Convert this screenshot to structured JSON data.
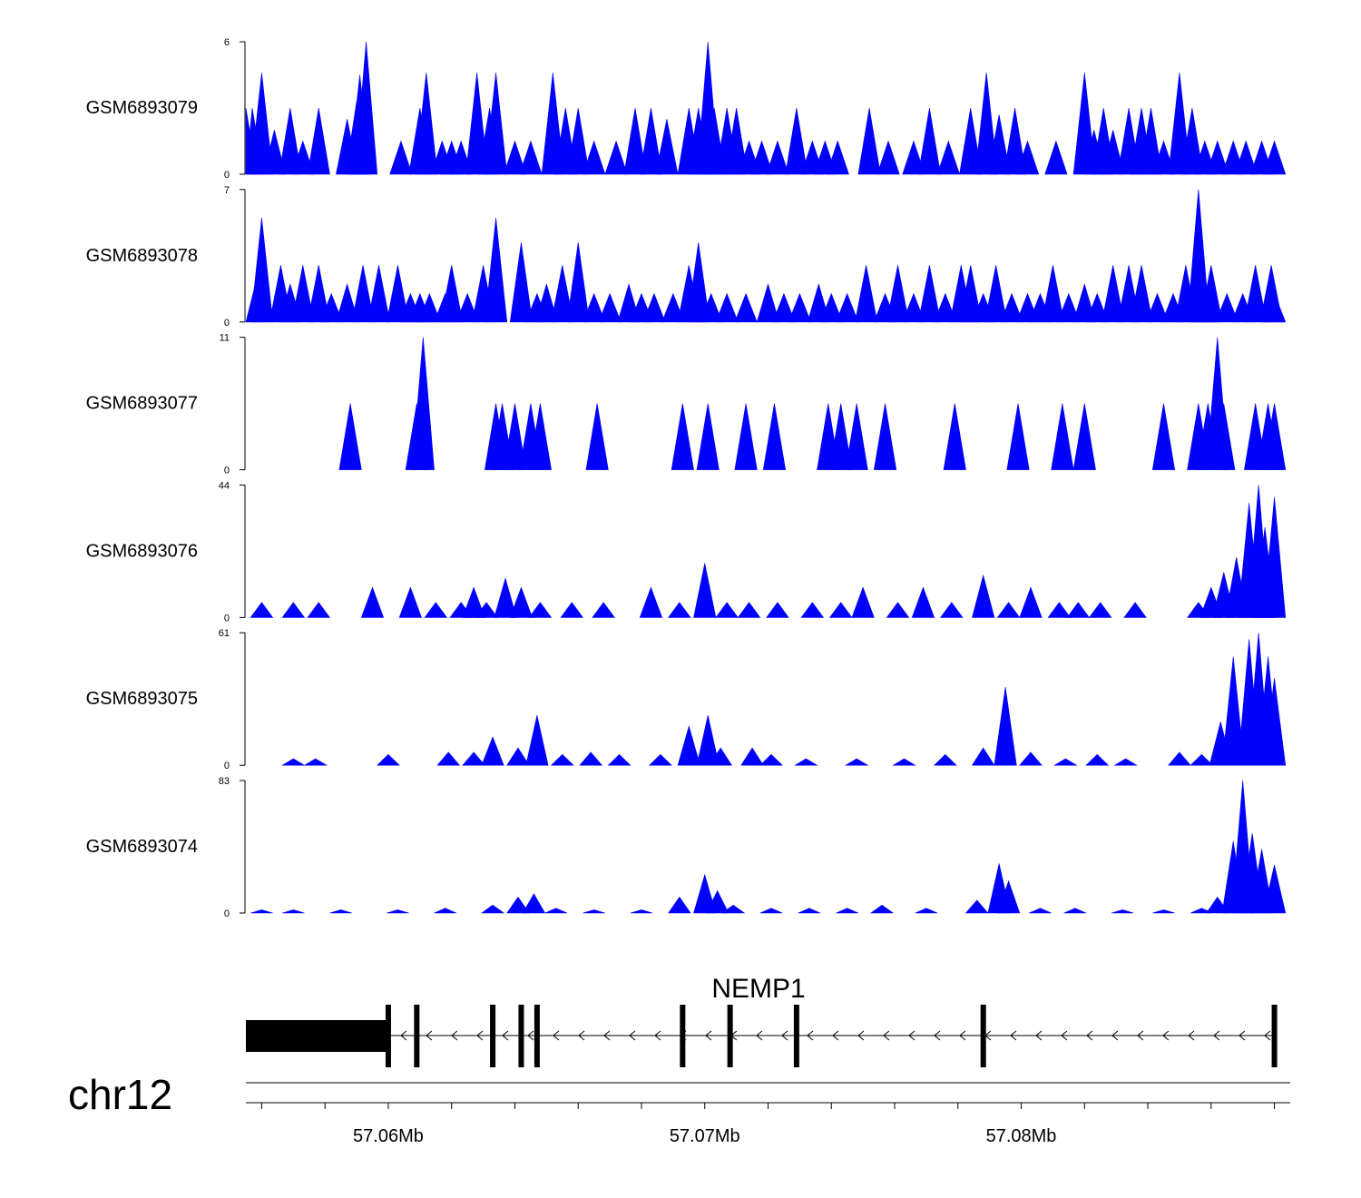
{
  "chart_data": {
    "type": "area",
    "title": "",
    "chromosome": "chr12",
    "xlim_bp": [
      57055500,
      57088500
    ],
    "x_ticks": [
      {
        "pos": 57060000,
        "label": "57.06Mb"
      },
      {
        "pos": 57070000,
        "label": "57.07Mb"
      },
      {
        "pos": 57080000,
        "label": "57.08Mb"
      }
    ],
    "minor_tick_step_bp": 2000,
    "fill_color": "#0000ff",
    "gene": {
      "name": "NEMP1",
      "strand": "-",
      "start": 57055500,
      "end": 57088000,
      "utr_end": 57060000,
      "exons": [
        57060000,
        57060900,
        57063300,
        57064200,
        57064700,
        57069300,
        57070800,
        57072900,
        57078800,
        57088000
      ]
    },
    "tracks": [
      {
        "name": "GSM6893079",
        "ymax": 6,
        "peaks": [
          [
            57055500,
            3
          ],
          [
            57055700,
            3
          ],
          [
            57056000,
            4.6
          ],
          [
            57056400,
            2
          ],
          [
            57056900,
            3
          ],
          [
            57057300,
            1.5
          ],
          [
            57057800,
            3
          ],
          [
            57058700,
            2.5
          ],
          [
            57059000,
            3.3
          ],
          [
            57059100,
            4.5
          ],
          [
            57059300,
            6
          ],
          [
            57060400,
            1.5
          ],
          [
            57061000,
            3
          ],
          [
            57061200,
            4.6
          ],
          [
            57061700,
            1.5
          ],
          [
            57062000,
            1.5
          ],
          [
            57062300,
            1.5
          ],
          [
            57062800,
            4.6
          ],
          [
            57063200,
            3
          ],
          [
            57063400,
            4.6
          ],
          [
            57064000,
            1.5
          ],
          [
            57064500,
            1.5
          ],
          [
            57065200,
            4.6
          ],
          [
            57065600,
            3
          ],
          [
            57066000,
            3
          ],
          [
            57066500,
            1.5
          ],
          [
            57067200,
            1.5
          ],
          [
            57067800,
            3
          ],
          [
            57068300,
            3
          ],
          [
            57068800,
            2.5
          ],
          [
            57069500,
            3
          ],
          [
            57069800,
            3
          ],
          [
            57070100,
            6
          ],
          [
            57070300,
            3
          ],
          [
            57070700,
            3
          ],
          [
            57071000,
            3
          ],
          [
            57071400,
            1.5
          ],
          [
            57071800,
            1.5
          ],
          [
            57072300,
            1.5
          ],
          [
            57072900,
            3
          ],
          [
            57073400,
            1.5
          ],
          [
            57073800,
            1.5
          ],
          [
            57074200,
            1.5
          ],
          [
            57075200,
            3
          ],
          [
            57075800,
            1.5
          ],
          [
            57076600,
            1.5
          ],
          [
            57077100,
            3
          ],
          [
            57077700,
            1.5
          ],
          [
            57078400,
            3
          ],
          [
            57078900,
            4.6
          ],
          [
            57079300,
            2.7
          ],
          [
            57079800,
            3
          ],
          [
            57080200,
            1.5
          ],
          [
            57081100,
            1.5
          ],
          [
            57082000,
            4.6
          ],
          [
            57082300,
            2
          ],
          [
            57082600,
            3
          ],
          [
            57082900,
            2
          ],
          [
            57083400,
            3
          ],
          [
            57083800,
            3
          ],
          [
            57084100,
            3
          ],
          [
            57084500,
            1.5
          ],
          [
            57085000,
            4.6
          ],
          [
            57085400,
            3
          ],
          [
            57085800,
            1.5
          ],
          [
            57086200,
            1.5
          ],
          [
            57086700,
            1.5
          ],
          [
            57087100,
            1.5
          ],
          [
            57087600,
            1.5
          ],
          [
            57088000,
            1.5
          ]
        ]
      },
      {
        "name": "GSM6893078",
        "ymax": 7,
        "peaks": [
          [
            57055800,
            2
          ],
          [
            57056000,
            5.5
          ],
          [
            57056600,
            3
          ],
          [
            57056900,
            2
          ],
          [
            57057300,
            3
          ],
          [
            57057800,
            3
          ],
          [
            57058200,
            1.5
          ],
          [
            57058700,
            2
          ],
          [
            57059200,
            3
          ],
          [
            57059700,
            3
          ],
          [
            57060300,
            3
          ],
          [
            57060700,
            1.5
          ],
          [
            57061000,
            1.5
          ],
          [
            57061300,
            1.5
          ],
          [
            57061800,
            1.5
          ],
          [
            57062000,
            3
          ],
          [
            57062500,
            1.5
          ],
          [
            57063000,
            3
          ],
          [
            57063400,
            5.5
          ],
          [
            57064200,
            4.2
          ],
          [
            57064700,
            1.5
          ],
          [
            57065000,
            2
          ],
          [
            57065500,
            3
          ],
          [
            57066000,
            4.2
          ],
          [
            57066500,
            1.5
          ],
          [
            57067000,
            1.5
          ],
          [
            57067600,
            2
          ],
          [
            57068000,
            1.5
          ],
          [
            57068400,
            1.5
          ],
          [
            57069000,
            1.5
          ],
          [
            57069500,
            3
          ],
          [
            57069800,
            4.2
          ],
          [
            57070200,
            1.5
          ],
          [
            57070700,
            1.5
          ],
          [
            57071300,
            1.5
          ],
          [
            57072000,
            2
          ],
          [
            57072500,
            1.5
          ],
          [
            57073000,
            1.5
          ],
          [
            57073600,
            2
          ],
          [
            57074000,
            1.5
          ],
          [
            57074500,
            1.5
          ],
          [
            57075100,
            3
          ],
          [
            57075700,
            1.5
          ],
          [
            57076100,
            3
          ],
          [
            57076600,
            1.5
          ],
          [
            57077100,
            3
          ],
          [
            57077600,
            1.5
          ],
          [
            57078100,
            3
          ],
          [
            57078400,
            3
          ],
          [
            57078800,
            1.5
          ],
          [
            57079200,
            3
          ],
          [
            57079700,
            1.5
          ],
          [
            57080200,
            1.5
          ],
          [
            57080600,
            1.5
          ],
          [
            57081000,
            3
          ],
          [
            57081500,
            1.5
          ],
          [
            57082000,
            2
          ],
          [
            57082400,
            1.5
          ],
          [
            57082900,
            3
          ],
          [
            57083400,
            3
          ],
          [
            57083800,
            3
          ],
          [
            57084300,
            1.5
          ],
          [
            57084800,
            1.5
          ],
          [
            57085200,
            3
          ],
          [
            57085600,
            7
          ],
          [
            57085800,
            1.5
          ],
          [
            57086000,
            3
          ],
          [
            57086500,
            1.5
          ],
          [
            57087000,
            1.5
          ],
          [
            57087400,
            3
          ],
          [
            57087900,
            3
          ],
          [
            57088000,
            1.5
          ]
        ]
      },
      {
        "name": "GSM6893077",
        "ymax": 11,
        "peaks": [
          [
            57058800,
            5.5
          ],
          [
            57060900,
            5.5
          ],
          [
            57061100,
            11
          ],
          [
            57063400,
            5.5
          ],
          [
            57063600,
            5.5
          ],
          [
            57064000,
            5.5
          ],
          [
            57064500,
            5.5
          ],
          [
            57064800,
            5.5
          ],
          [
            57066600,
            5.5
          ],
          [
            57069300,
            5.5
          ],
          [
            57070100,
            5.5
          ],
          [
            57071300,
            5.5
          ],
          [
            57072200,
            5.5
          ],
          [
            57073900,
            5.5
          ],
          [
            57074300,
            5.5
          ],
          [
            57074800,
            5.5
          ],
          [
            57075700,
            5.5
          ],
          [
            57077900,
            5.5
          ],
          [
            57079900,
            5.5
          ],
          [
            57081300,
            5.5
          ],
          [
            57082000,
            5.5
          ],
          [
            57084500,
            5.5
          ],
          [
            57085600,
            5.5
          ],
          [
            57085900,
            5.5
          ],
          [
            57086200,
            11
          ],
          [
            57086400,
            5.5
          ],
          [
            57087400,
            5.5
          ],
          [
            57087800,
            5.5
          ],
          [
            57088000,
            5.5
          ]
        ]
      },
      {
        "name": "GSM6893076",
        "ymax": 44,
        "peaks": [
          [
            57056000,
            5
          ],
          [
            57057000,
            5
          ],
          [
            57057800,
            5
          ],
          [
            57059500,
            10
          ],
          [
            57060700,
            10
          ],
          [
            57061500,
            5
          ],
          [
            57062300,
            5
          ],
          [
            57062700,
            10
          ],
          [
            57063100,
            5
          ],
          [
            57063700,
            13
          ],
          [
            57064200,
            10
          ],
          [
            57064800,
            5
          ],
          [
            57065800,
            5
          ],
          [
            57066800,
            5
          ],
          [
            57068300,
            10
          ],
          [
            57069200,
            5
          ],
          [
            57070000,
            18
          ],
          [
            57070700,
            5
          ],
          [
            57071400,
            5
          ],
          [
            57072300,
            5
          ],
          [
            57073400,
            5
          ],
          [
            57074300,
            5
          ],
          [
            57075000,
            10
          ],
          [
            57076100,
            5
          ],
          [
            57076900,
            10
          ],
          [
            57077800,
            5
          ],
          [
            57078800,
            14
          ],
          [
            57079600,
            5
          ],
          [
            57080300,
            10
          ],
          [
            57081200,
            5
          ],
          [
            57081800,
            5
          ],
          [
            57082500,
            5
          ],
          [
            57083600,
            5
          ],
          [
            57085600,
            5
          ],
          [
            57086000,
            10
          ],
          [
            57086400,
            15
          ],
          [
            57086800,
            20
          ],
          [
            57087200,
            38
          ],
          [
            57087500,
            44
          ],
          [
            57087700,
            30
          ],
          [
            57088000,
            40
          ]
        ]
      },
      {
        "name": "GSM6893075",
        "ymax": 61,
        "peaks": [
          [
            57057000,
            3
          ],
          [
            57057700,
            3
          ],
          [
            57060000,
            5
          ],
          [
            57061900,
            6
          ],
          [
            57062700,
            6
          ],
          [
            57063300,
            13
          ],
          [
            57064100,
            8
          ],
          [
            57064700,
            23
          ],
          [
            57065500,
            5
          ],
          [
            57066400,
            6
          ],
          [
            57067300,
            5
          ],
          [
            57068600,
            5
          ],
          [
            57069500,
            18
          ],
          [
            57070100,
            23
          ],
          [
            57070500,
            8
          ],
          [
            57071500,
            8
          ],
          [
            57072100,
            5
          ],
          [
            57073200,
            3
          ],
          [
            57074800,
            3
          ],
          [
            57076300,
            3
          ],
          [
            57077600,
            5
          ],
          [
            57078800,
            8
          ],
          [
            57079500,
            36
          ],
          [
            57080300,
            6
          ],
          [
            57081400,
            3
          ],
          [
            57082400,
            5
          ],
          [
            57083300,
            3
          ],
          [
            57085000,
            6
          ],
          [
            57085700,
            5
          ],
          [
            57086300,
            20
          ],
          [
            57086700,
            50
          ],
          [
            57087200,
            58
          ],
          [
            57087500,
            61
          ],
          [
            57087800,
            50
          ],
          [
            57088000,
            40
          ]
        ]
      },
      {
        "name": "GSM6893074",
        "ymax": 83,
        "peaks": [
          [
            57056000,
            2
          ],
          [
            57057000,
            2
          ],
          [
            57058500,
            2
          ],
          [
            57060300,
            2
          ],
          [
            57061800,
            3
          ],
          [
            57063300,
            5
          ],
          [
            57064100,
            10
          ],
          [
            57064600,
            12
          ],
          [
            57065300,
            3
          ],
          [
            57066500,
            2
          ],
          [
            57068000,
            2
          ],
          [
            57069200,
            10
          ],
          [
            57070000,
            24
          ],
          [
            57070400,
            14
          ],
          [
            57070900,
            5
          ],
          [
            57072100,
            3
          ],
          [
            57073300,
            3
          ],
          [
            57074500,
            3
          ],
          [
            57075600,
            5
          ],
          [
            57077000,
            3
          ],
          [
            57078600,
            8
          ],
          [
            57079300,
            31
          ],
          [
            57079600,
            20
          ],
          [
            57080600,
            3
          ],
          [
            57081700,
            3
          ],
          [
            57083200,
            2
          ],
          [
            57084500,
            2
          ],
          [
            57085700,
            3
          ],
          [
            57086200,
            10
          ],
          [
            57086700,
            45
          ],
          [
            57087000,
            83
          ],
          [
            57087300,
            50
          ],
          [
            57087600,
            40
          ],
          [
            57088000,
            30
          ]
        ]
      }
    ]
  }
}
